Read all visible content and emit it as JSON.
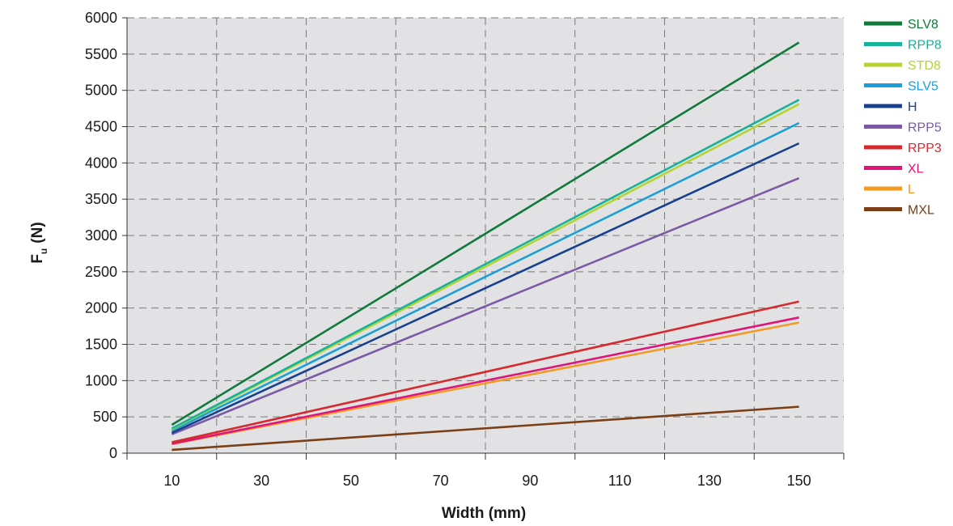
{
  "chart_data": {
    "type": "line",
    "title": "",
    "xlabel": "Width (mm)",
    "ylabel_main": "F",
    "ylabel_sub": "u",
    "ylabel_unit": "(N)",
    "xlim": [
      0,
      160
    ],
    "ylim": [
      0,
      6000
    ],
    "x_ticks": [
      10,
      30,
      50,
      70,
      90,
      110,
      130,
      150
    ],
    "y_ticks": [
      0,
      500,
      1000,
      1500,
      2000,
      2500,
      3000,
      3500,
      4000,
      4500,
      5000,
      5500,
      6000
    ],
    "grid_x": [
      20,
      40,
      60,
      80,
      100,
      120,
      140
    ],
    "grid": true,
    "legend_position": "right",
    "plot_background": "#e2e2e4",
    "series": [
      {
        "name": "SLV8",
        "color": "#0f7a3b",
        "x": [
          10,
          150
        ],
        "y": [
          390,
          5660
        ]
      },
      {
        "name": "RPP8",
        "color": "#16b39a",
        "x": [
          10,
          150
        ],
        "y": [
          340,
          4870
        ]
      },
      {
        "name": "STD8",
        "color": "#b5d334",
        "x": [
          10,
          150
        ],
        "y": [
          330,
          4810
        ]
      },
      {
        "name": "SLV5",
        "color": "#1a9fd9",
        "x": [
          10,
          150
        ],
        "y": [
          310,
          4550
        ]
      },
      {
        "name": "H",
        "color": "#17418e",
        "x": [
          10,
          150
        ],
        "y": [
          280,
          4270
        ]
      },
      {
        "name": "RPP5",
        "color": "#7a5aa6",
        "x": [
          10,
          150
        ],
        "y": [
          260,
          3790
        ]
      },
      {
        "name": "RPP3",
        "color": "#d52a2e",
        "x": [
          10,
          150
        ],
        "y": [
          150,
          2090
        ]
      },
      {
        "name": "XL",
        "color": "#e0157a",
        "x": [
          10,
          150
        ],
        "y": [
          130,
          1870
        ]
      },
      {
        "name": "L",
        "color": "#f39a25",
        "x": [
          10,
          150
        ],
        "y": [
          125,
          1800
        ]
      },
      {
        "name": "MXL",
        "color": "#7a3f16",
        "x": [
          10,
          150
        ],
        "y": [
          45,
          640
        ]
      }
    ]
  }
}
